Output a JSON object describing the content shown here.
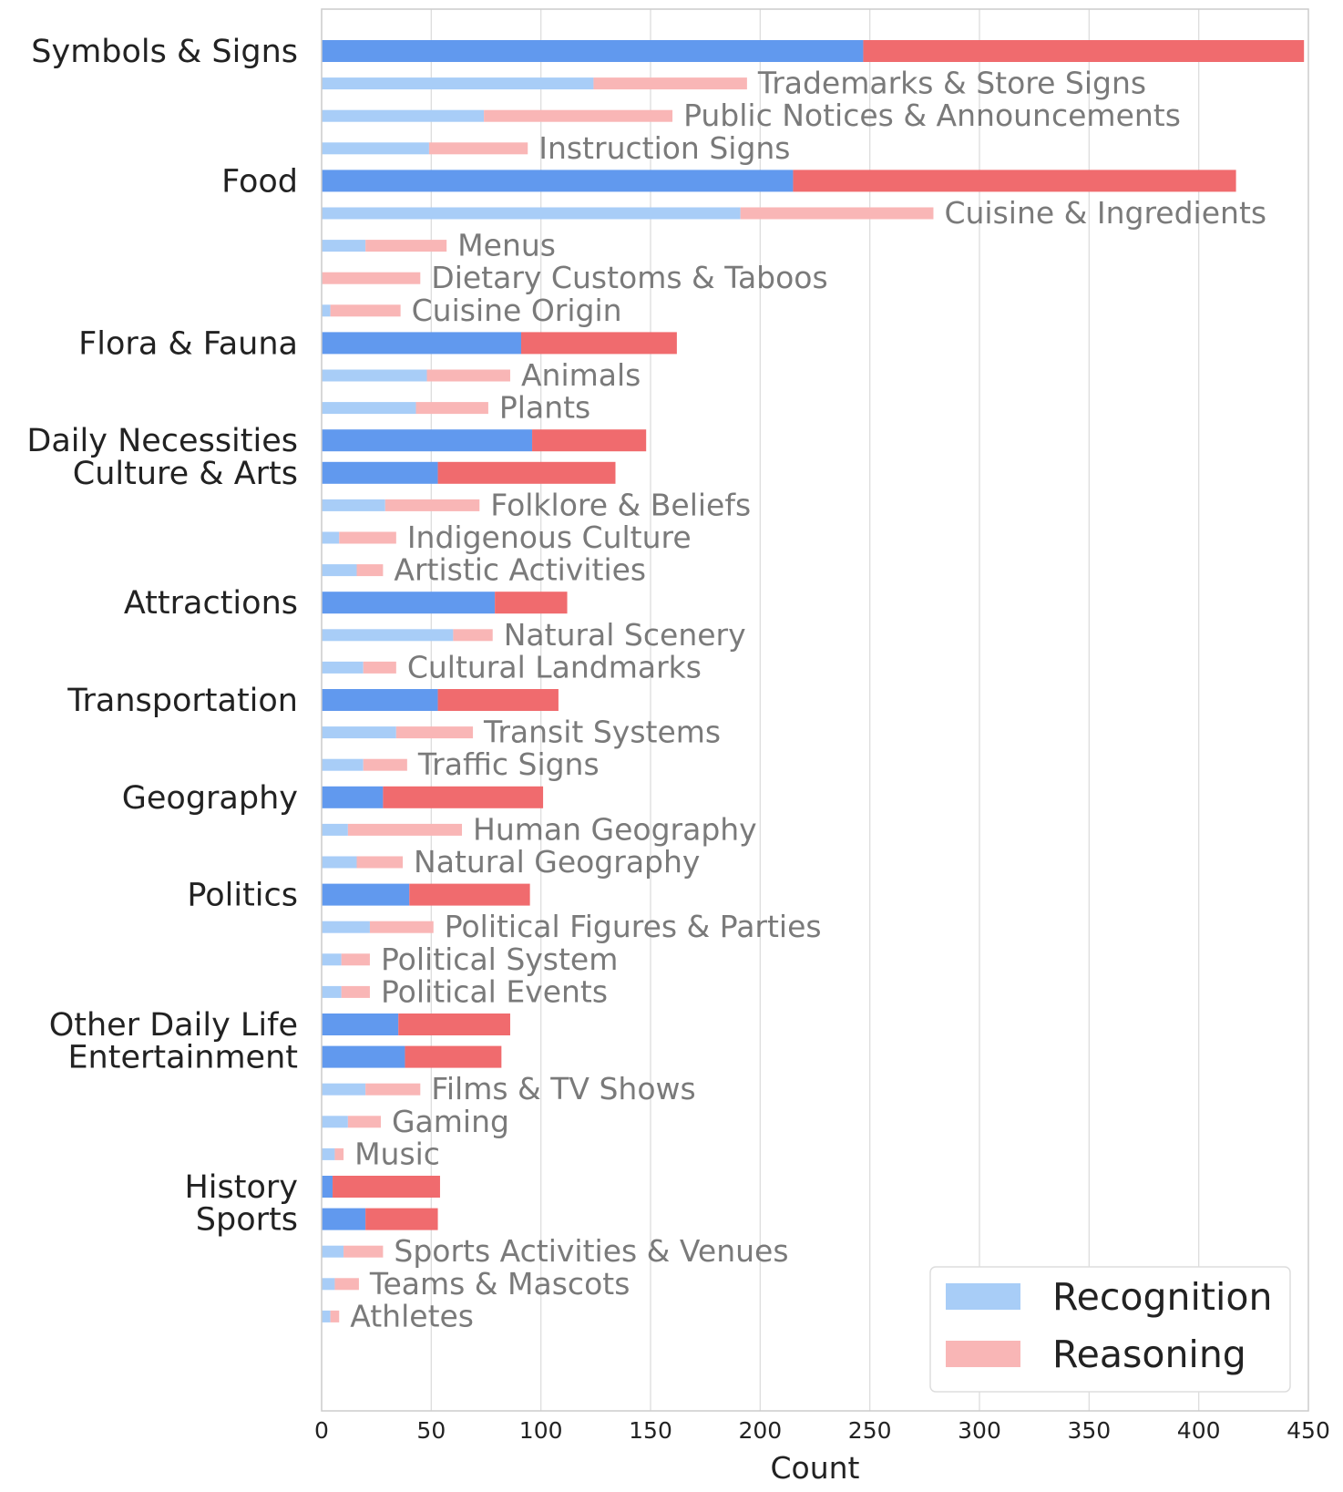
{
  "chart_data": {
    "type": "bar",
    "orientation": "horizontal",
    "stacked": true,
    "xlabel": "Count",
    "xlim": [
      0,
      450
    ],
    "xticks": [
      0,
      50,
      100,
      150,
      200,
      250,
      300,
      350,
      400,
      450
    ],
    "grid": "vertical",
    "legend_position": "bottom-right",
    "series": [
      {
        "name": "Recognition",
        "color": "#a8cdf7",
        "main_color": "#6199ee"
      },
      {
        "name": "Reasoning",
        "color": "#f9b6b6",
        "main_color": "#f06b6e"
      }
    ],
    "rows": [
      {
        "label": "Symbols & Signs",
        "level": "main",
        "recognition": 247,
        "reasoning": 201
      },
      {
        "label": "Trademarks & Store Signs",
        "level": "sub",
        "recognition": 124,
        "reasoning": 70
      },
      {
        "label": "Public Notices & Announcements",
        "level": "sub",
        "recognition": 74,
        "reasoning": 86
      },
      {
        "label": "Instruction Signs",
        "level": "sub",
        "recognition": 49,
        "reasoning": 45
      },
      {
        "label": "Food",
        "level": "main",
        "recognition": 215,
        "reasoning": 202
      },
      {
        "label": "Cuisine & Ingredients",
        "level": "sub",
        "recognition": 191,
        "reasoning": 88
      },
      {
        "label": "Menus",
        "level": "sub",
        "recognition": 20,
        "reasoning": 37
      },
      {
        "label": "Dietary Customs & Taboos",
        "level": "sub",
        "recognition": 0,
        "reasoning": 45
      },
      {
        "label": "Cuisine Origin",
        "level": "sub",
        "recognition": 4,
        "reasoning": 32
      },
      {
        "label": "Flora & Fauna",
        "level": "main",
        "recognition": 91,
        "reasoning": 71
      },
      {
        "label": "Animals",
        "level": "sub",
        "recognition": 48,
        "reasoning": 38
      },
      {
        "label": "Plants",
        "level": "sub",
        "recognition": 43,
        "reasoning": 33
      },
      {
        "label": "Daily Necessities",
        "level": "main",
        "recognition": 96,
        "reasoning": 52
      },
      {
        "label": "Culture & Arts",
        "level": "main",
        "recognition": 53,
        "reasoning": 81
      },
      {
        "label": "Folklore & Beliefs",
        "level": "sub",
        "recognition": 29,
        "reasoning": 43
      },
      {
        "label": "Indigenous Culture",
        "level": "sub",
        "recognition": 8,
        "reasoning": 26
      },
      {
        "label": "Artistic Activities",
        "level": "sub",
        "recognition": 16,
        "reasoning": 12
      },
      {
        "label": "Attractions",
        "level": "main",
        "recognition": 79,
        "reasoning": 33
      },
      {
        "label": "Natural Scenery",
        "level": "sub",
        "recognition": 60,
        "reasoning": 18
      },
      {
        "label": "Cultural Landmarks",
        "level": "sub",
        "recognition": 19,
        "reasoning": 15
      },
      {
        "label": "Transportation",
        "level": "main",
        "recognition": 53,
        "reasoning": 55
      },
      {
        "label": "Transit Systems",
        "level": "sub",
        "recognition": 34,
        "reasoning": 35
      },
      {
        "label": "Traffic Signs",
        "level": "sub",
        "recognition": 19,
        "reasoning": 20
      },
      {
        "label": "Geography",
        "level": "main",
        "recognition": 28,
        "reasoning": 73
      },
      {
        "label": "Human Geography",
        "level": "sub",
        "recognition": 12,
        "reasoning": 52
      },
      {
        "label": "Natural Geography",
        "level": "sub",
        "recognition": 16,
        "reasoning": 21
      },
      {
        "label": "Politics",
        "level": "main",
        "recognition": 40,
        "reasoning": 55
      },
      {
        "label": "Political Figures & Parties",
        "level": "sub",
        "recognition": 22,
        "reasoning": 29
      },
      {
        "label": "Political System",
        "level": "sub",
        "recognition": 9,
        "reasoning": 13
      },
      {
        "label": "Political Events",
        "level": "sub",
        "recognition": 9,
        "reasoning": 13
      },
      {
        "label": "Other Daily Life",
        "level": "main",
        "recognition": 35,
        "reasoning": 51
      },
      {
        "label": "Entertainment",
        "level": "main",
        "recognition": 38,
        "reasoning": 44
      },
      {
        "label": "Films & TV Shows",
        "level": "sub",
        "recognition": 20,
        "reasoning": 25
      },
      {
        "label": "Gaming",
        "level": "sub",
        "recognition": 12,
        "reasoning": 15
      },
      {
        "label": "Music",
        "level": "sub",
        "recognition": 6,
        "reasoning": 4
      },
      {
        "label": "History",
        "level": "main",
        "recognition": 5,
        "reasoning": 49
      },
      {
        "label": "Sports",
        "level": "main",
        "recognition": 20,
        "reasoning": 33
      },
      {
        "label": "Sports Activities & Venues",
        "level": "sub",
        "recognition": 10,
        "reasoning": 18
      },
      {
        "label": "Teams & Mascots",
        "level": "sub",
        "recognition": 6,
        "reasoning": 11
      },
      {
        "label": "Athletes",
        "level": "sub",
        "recognition": 4,
        "reasoning": 4
      }
    ]
  }
}
